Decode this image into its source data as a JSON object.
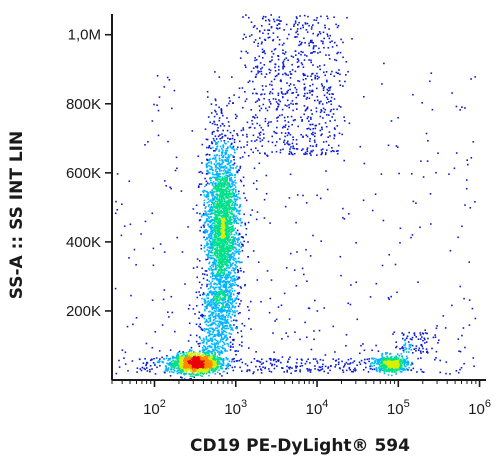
{
  "chart_data": {
    "type": "scatter",
    "subtype": "flow-cytometry-density-dot-plot",
    "title": "",
    "xlabel": "CD19 PE-DyLight® 594",
    "ylabel": "SS-A :: SS INT LIN",
    "x_scale": "log",
    "xlim": [
      30,
      1200000
    ],
    "ylim": [
      0,
      1060000
    ],
    "x_ticks": [
      {
        "value": 100,
        "base": "10",
        "exp": "2"
      },
      {
        "value": 1000,
        "base": "10",
        "exp": "3"
      },
      {
        "value": 10000,
        "base": "10",
        "exp": "4"
      },
      {
        "value": 100000,
        "base": "10",
        "exp": "5"
      },
      {
        "value": 1000000,
        "base": "10",
        "exp": "6"
      }
    ],
    "y_ticks": [
      {
        "value": 200000,
        "label": "200K"
      },
      {
        "value": 400000,
        "label": "400K"
      },
      {
        "value": 600000,
        "label": "600K"
      },
      {
        "value": 800000,
        "label": "800K"
      },
      {
        "value": 1000000,
        "label": "1,0M"
      }
    ],
    "grid": false,
    "legend": "none",
    "density_colormap": [
      "#0a1bd6",
      "#00b4ff",
      "#00e08a",
      "#d6f000",
      "#ff8a00",
      "#e8000a"
    ],
    "populations": [
      {
        "center_x": 320,
        "center_y": 50000,
        "spread_log_x": 0.14,
        "spread_y": 14000,
        "density": "highest"
      },
      {
        "center_x": 700,
        "center_y": 450000,
        "spread_log_x": 0.1,
        "spread_y": 130000,
        "orientation": "elongated-vertical",
        "density": "high"
      },
      {
        "center_x": 80000,
        "center_y": 50000,
        "spread_log_x": 0.1,
        "spread_y": 12000,
        "density": "medium"
      },
      {
        "center_x": 2000,
        "center_y": 900000,
        "spread_log_x": 0.3,
        "spread_y": 130000,
        "orientation": "diagonal-tail",
        "density": "low"
      },
      {
        "center_x": 10000,
        "center_y": 350000,
        "spread_log_x": 1.0,
        "spread_y": 300000,
        "density": "sparse"
      }
    ]
  }
}
